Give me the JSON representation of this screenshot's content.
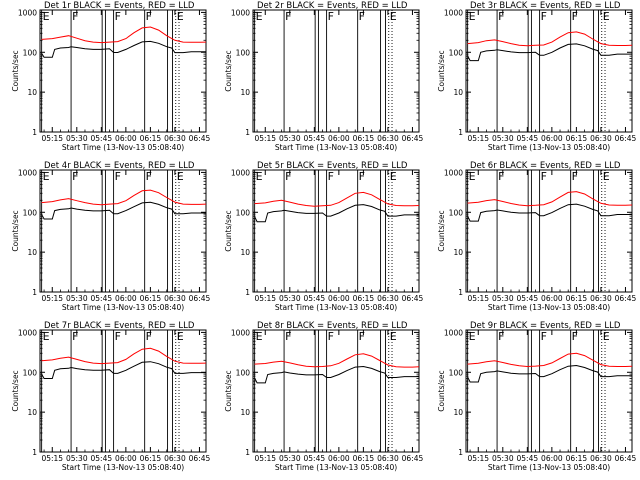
{
  "chart_data": {
    "type": "line",
    "x_tick_labels": [
      "05:15",
      "05:30",
      "05:45",
      "06:00",
      "06:15",
      "06:30",
      "06:45"
    ],
    "x_tick_minutes": [
      15,
      30,
      45,
      60,
      75,
      90,
      105
    ],
    "x_range_minutes": [
      7.5,
      109
    ],
    "y_tick_labels": [
      "1",
      "10",
      "100",
      "1000"
    ],
    "y_tick_values": [
      1,
      10,
      100,
      1000
    ],
    "ylim": [
      1,
      1150
    ],
    "ylabel": "Counts/sec",
    "xlabel": "Start Time (13-Nov-13 05:08:40)",
    "yscale": "log",
    "series_colors": {
      "events": "#000000",
      "lld": "#ff0000"
    },
    "markers": [
      {
        "label": "E",
        "minute": 8.5,
        "style": "solid"
      },
      {
        "label": "F",
        "minute": 26.5,
        "style": "solid"
      },
      {
        "label": "",
        "minute": 45.5,
        "style": "solid"
      },
      {
        "label": "",
        "minute": 47.5,
        "style": "solid"
      },
      {
        "label": "F",
        "minute": 52.5,
        "style": "solid"
      },
      {
        "label": "F",
        "minute": 71.5,
        "style": "solid"
      },
      {
        "label": "",
        "minute": 85.5,
        "style": "solid"
      },
      {
        "label": "",
        "minute": 88.5,
        "style": "solid"
      },
      {
        "label": "E",
        "minute": 90.5,
        "style": "dotted"
      },
      {
        "label": "",
        "minute": 92.5,
        "style": "dotted"
      }
    ],
    "panels": [
      {
        "title": "Det 1r BLACK = Events, RED = LLD",
        "events": {
          "x": [
            8.5,
            10,
            15,
            16.5,
            20,
            25,
            26.5,
            30,
            35,
            40,
            45,
            50,
            52.5,
            55,
            60,
            65,
            70,
            75,
            80,
            85,
            88,
            90,
            95,
            100,
            105,
            109
          ],
          "y": [
            95,
            75,
            75,
            118,
            128,
            132,
            138,
            132,
            122,
            118,
            118,
            122,
            99,
            99,
            118,
            148,
            182,
            188,
            168,
            138,
            128,
            98,
            98,
            103,
            103,
            103
          ]
        },
        "lld": {
          "x": [
            8.5,
            15,
            20,
            25,
            30,
            35,
            40,
            45,
            50,
            55,
            60,
            65,
            70,
            75,
            80,
            85,
            90,
            95,
            100,
            105,
            109
          ],
          "y": [
            210,
            220,
            240,
            260,
            225,
            195,
            180,
            175,
            180,
            185,
            220,
            310,
            410,
            430,
            360,
            260,
            200,
            180,
            178,
            178,
            180
          ]
        }
      },
      {
        "title": "Det 2r BLACK = Events, RED = LLD",
        "events": {
          "x": [],
          "y": []
        },
        "lld": {
          "x": [],
          "y": []
        }
      },
      {
        "title": "Det 3r BLACK = Events, RED = LLD",
        "events": {
          "x": [
            8.5,
            10,
            15,
            16.5,
            20,
            25,
            26.5,
            30,
            35,
            40,
            45,
            50,
            52.5,
            55,
            60,
            65,
            70,
            75,
            80,
            85,
            88,
            90,
            95,
            100,
            105,
            109
          ],
          "y": [
            82,
            62,
            62,
            100,
            108,
            112,
            116,
            110,
            102,
            98,
            98,
            100,
            84,
            84,
            100,
            128,
            158,
            162,
            145,
            120,
            110,
            84,
            84,
            90,
            90,
            90
          ]
        },
        "lld": {
          "x": [
            8.5,
            15,
            20,
            25,
            30,
            35,
            40,
            45,
            50,
            55,
            60,
            65,
            70,
            75,
            80,
            85,
            90,
            95,
            100,
            105,
            109
          ],
          "y": [
            165,
            175,
            195,
            205,
            185,
            165,
            150,
            145,
            150,
            152,
            180,
            240,
            310,
            325,
            285,
            215,
            165,
            150,
            148,
            148,
            150
          ]
        }
      },
      {
        "title": "Det 4r BLACK = Events, RED = LLD",
        "events": {
          "x": [
            8.5,
            10,
            15,
            16.5,
            20,
            25,
            26.5,
            30,
            35,
            40,
            45,
            50,
            52.5,
            55,
            60,
            65,
            70,
            75,
            80,
            85,
            88,
            90,
            95,
            100,
            105,
            109
          ],
          "y": [
            88,
            68,
            68,
            110,
            118,
            122,
            128,
            120,
            112,
            108,
            108,
            112,
            92,
            92,
            110,
            138,
            172,
            178,
            158,
            130,
            120,
            92,
            92,
            96,
            96,
            96
          ]
        },
        "lld": {
          "x": [
            8.5,
            15,
            20,
            25,
            30,
            35,
            40,
            45,
            50,
            55,
            60,
            65,
            70,
            75,
            80,
            85,
            90,
            95,
            100,
            105,
            109
          ],
          "y": [
            175,
            185,
            205,
            220,
            195,
            175,
            160,
            155,
            160,
            165,
            195,
            265,
            345,
            360,
            310,
            235,
            180,
            160,
            158,
            158,
            160
          ]
        }
      },
      {
        "title": "Det 5r BLACK = Events, RED = LLD",
        "events": {
          "x": [
            8.5,
            10,
            15,
            16.5,
            20,
            25,
            26.5,
            30,
            35,
            40,
            45,
            50,
            52.5,
            55,
            60,
            65,
            70,
            75,
            80,
            85,
            88,
            90,
            95,
            100,
            105,
            109
          ],
          "y": [
            78,
            58,
            58,
            96,
            104,
            108,
            112,
            106,
            98,
            94,
            94,
            96,
            80,
            80,
            96,
            122,
            150,
            156,
            140,
            115,
            106,
            80,
            80,
            86,
            86,
            86
          ]
        },
        "lld": {
          "x": [
            8.5,
            15,
            20,
            25,
            30,
            35,
            40,
            45,
            50,
            55,
            60,
            65,
            70,
            75,
            80,
            85,
            90,
            95,
            100,
            105,
            109
          ],
          "y": [
            165,
            172,
            190,
            200,
            180,
            160,
            148,
            142,
            146,
            150,
            175,
            230,
            300,
            315,
            275,
            210,
            162,
            148,
            145,
            145,
            148
          ]
        }
      },
      {
        "title": "Det 6r BLACK = Events, RED = LLD",
        "events": {
          "x": [
            8.5,
            10,
            15,
            16.5,
            20,
            25,
            26.5,
            30,
            35,
            40,
            45,
            50,
            52.5,
            55,
            60,
            65,
            70,
            75,
            80,
            85,
            88,
            90,
            95,
            100,
            105,
            109
          ],
          "y": [
            80,
            60,
            60,
            98,
            106,
            110,
            114,
            108,
            100,
            96,
            96,
            98,
            82,
            82,
            98,
            125,
            155,
            160,
            142,
            118,
            108,
            82,
            82,
            88,
            88,
            88
          ]
        },
        "lld": {
          "x": [
            8.5,
            15,
            20,
            25,
            30,
            35,
            40,
            45,
            50,
            55,
            60,
            65,
            70,
            75,
            80,
            85,
            90,
            95,
            100,
            105,
            109
          ],
          "y": [
            170,
            178,
            196,
            208,
            186,
            166,
            152,
            146,
            150,
            155,
            182,
            240,
            315,
            330,
            288,
            218,
            168,
            152,
            150,
            150,
            152
          ]
        }
      },
      {
        "title": "Det 7r BLACK = Events, RED = LLD",
        "events": {
          "x": [
            8.5,
            10,
            15,
            16.5,
            20,
            25,
            26.5,
            30,
            35,
            40,
            45,
            50,
            52.5,
            55,
            60,
            65,
            70,
            75,
            80,
            85,
            88,
            90,
            95,
            100,
            105,
            109
          ],
          "y": [
            90,
            70,
            70,
            112,
            122,
            126,
            132,
            124,
            116,
            112,
            112,
            116,
            94,
            94,
            112,
            142,
            178,
            184,
            164,
            134,
            124,
            94,
            94,
            98,
            98,
            98
          ]
        },
        "lld": {
          "x": [
            8.5,
            15,
            20,
            25,
            30,
            35,
            40,
            45,
            50,
            55,
            60,
            65,
            70,
            75,
            80,
            85,
            90,
            95,
            100,
            105,
            109
          ],
          "y": [
            195,
            205,
            225,
            240,
            210,
            185,
            170,
            165,
            170,
            175,
            210,
            290,
            380,
            400,
            340,
            250,
            190,
            170,
            168,
            168,
            170
          ]
        }
      },
      {
        "title": "Det 8r BLACK = Events, RED = LLD",
        "events": {
          "x": [
            8.5,
            10,
            15,
            16.5,
            20,
            25,
            26.5,
            30,
            35,
            40,
            45,
            50,
            52.5,
            55,
            60,
            65,
            70,
            75,
            80,
            85,
            88,
            90,
            95,
            100,
            105,
            109
          ],
          "y": [
            72,
            54,
            54,
            88,
            94,
            98,
            102,
            96,
            90,
            86,
            86,
            88,
            74,
            74,
            88,
            110,
            135,
            140,
            125,
            104,
            96,
            74,
            74,
            78,
            78,
            78
          ]
        },
        "lld": {
          "x": [
            8.5,
            15,
            20,
            25,
            30,
            35,
            40,
            45,
            50,
            55,
            60,
            65,
            70,
            75,
            80,
            85,
            90,
            95,
            100,
            105,
            109
          ],
          "y": [
            160,
            166,
            180,
            190,
            172,
            155,
            142,
            138,
            140,
            145,
            168,
            215,
            275,
            290,
            255,
            198,
            152,
            138,
            135,
            135,
            138
          ]
        }
      },
      {
        "title": "Det 9r BLACK = Events, RED = LLD",
        "events": {
          "x": [
            8.5,
            10,
            15,
            16.5,
            20,
            25,
            26.5,
            30,
            35,
            40,
            45,
            50,
            52.5,
            55,
            60,
            65,
            70,
            75,
            80,
            85,
            88,
            90,
            95,
            100,
            105,
            109
          ],
          "y": [
            76,
            57,
            57,
            92,
            100,
            104,
            108,
            102,
            95,
            91,
            91,
            93,
            78,
            78,
            92,
            116,
            142,
            148,
            132,
            110,
            101,
            78,
            78,
            82,
            82,
            82
          ]
        },
        "lld": {
          "x": [
            8.5,
            15,
            20,
            25,
            30,
            35,
            40,
            45,
            50,
            55,
            60,
            65,
            70,
            75,
            80,
            85,
            90,
            95,
            100,
            105,
            109
          ],
          "y": [
            160,
            168,
            184,
            195,
            176,
            158,
            145,
            140,
            143,
            148,
            172,
            222,
            285,
            300,
            262,
            202,
            156,
            142,
            140,
            140,
            142
          ]
        }
      }
    ]
  }
}
